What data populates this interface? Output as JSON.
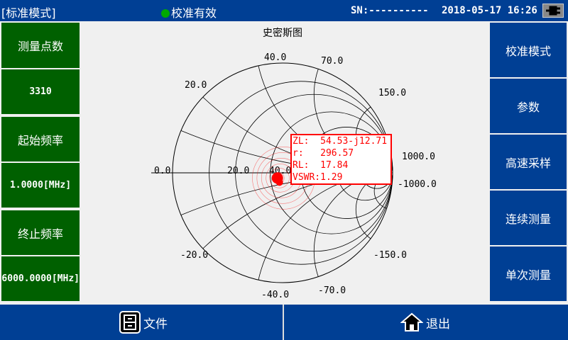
{
  "header": {
    "mode": "[标准模式]",
    "calibration_status": "校准有效",
    "sn": "SN:----------",
    "datetime": "2018-05-17 16:26",
    "status_color": "#00a000"
  },
  "left_panel": [
    {
      "label": "测量点数",
      "value": "3310"
    },
    {
      "label": "起始频率",
      "value": "1.0000[MHz]"
    },
    {
      "label": "终止频率",
      "value": "6000.0000[MHz]"
    }
  ],
  "right_panel": [
    "校准模式",
    "参数",
    "高速采样",
    "连续测量",
    "单次测量"
  ],
  "bottom": {
    "file": "文件",
    "exit": "退出"
  },
  "chart_data": {
    "type": "smith",
    "title": "史密斯图",
    "resistance_labels": [
      "0.0",
      "20.0",
      "40.0",
      "1000.0"
    ],
    "reactance_labels": [
      "20.0",
      "40.0",
      "70.0",
      "150.0",
      "-20.0",
      "-40.0",
      "-70.0",
      "-150.0",
      "-1000.0"
    ],
    "marker": {
      "zl": "54.53-j12.71",
      "r": "296.57",
      "rl": "17.84",
      "vswr": "1.29"
    },
    "marker_impedance": {
      "real": 54.53,
      "imag": -12.71
    },
    "z0": 50,
    "trace_color": "#ff0000"
  },
  "marker_text": {
    "zl": "ZL:  54.53-j12.71",
    "r": "r:   296.57",
    "rl": "RL:  17.84",
    "vswr": "VSWR:1.29"
  }
}
